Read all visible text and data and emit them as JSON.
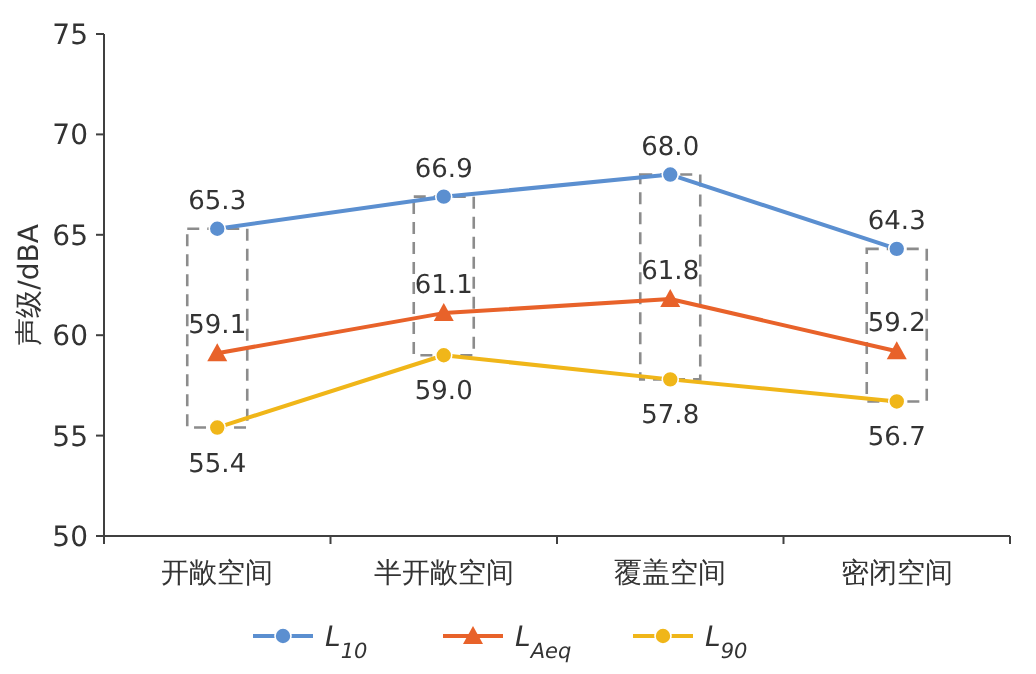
{
  "chart_data": {
    "type": "line",
    "ylabel": "声级/dBA",
    "categories": [
      "开敞空间",
      "半开敞空间",
      "覆盖空间",
      "密闭空间"
    ],
    "series": [
      {
        "name": "L$_{10}$",
        "color": "#5b8fd0",
        "values": [
          65.3,
          66.9,
          68.0,
          64.3
        ],
        "value_labels": [
          "65.3",
          "66.9",
          "68.0",
          "64.3"
        ],
        "marker": "circle"
      },
      {
        "name": "L$_{Aeq}$",
        "color": "#e8622a",
        "values": [
          59.1,
          61.1,
          61.8,
          59.2
        ],
        "value_labels": [
          "59.1",
          "61.1",
          "61.8",
          "59.2"
        ],
        "marker": "triangle"
      },
      {
        "name": "L$_{90}$",
        "color": "#f0b619",
        "values": [
          55.4,
          59.0,
          57.8,
          56.7
        ],
        "value_labels": [
          "55.4",
          "59.0",
          "57.8",
          "56.7"
        ],
        "marker": "circle"
      }
    ],
    "ylim": [
      50,
      75
    ],
    "yticks": [
      50,
      55,
      60,
      65,
      70,
      75
    ],
    "grid": false,
    "legend": "bottom",
    "line_style": "solid"
  }
}
